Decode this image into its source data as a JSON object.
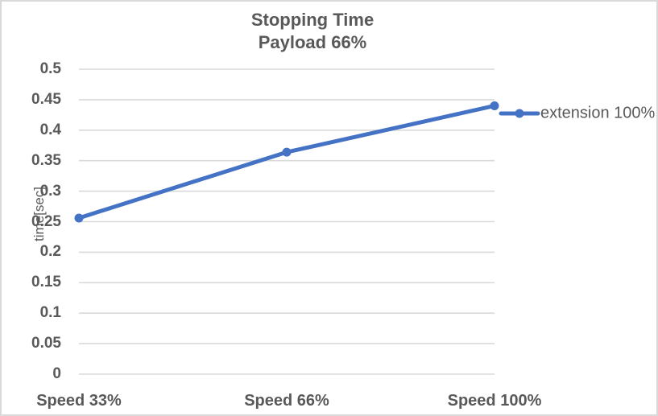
{
  "chart_data": {
    "type": "line",
    "title": "Stopping Time",
    "subtitle": "Payload 66%",
    "ylabel": "time[sec]",
    "xlabel": "",
    "categories": [
      "Speed 33%",
      "Speed 66%",
      "Speed 100%"
    ],
    "series": [
      {
        "name": "extension 100%",
        "values": [
          0.256,
          0.364,
          0.44
        ],
        "color": "#4472C4",
        "marker": "circle"
      }
    ],
    "ylim": [
      0,
      0.5
    ],
    "ytick_step": 0.05,
    "yticks": [
      "0",
      "0.05",
      "0.1",
      "0.15",
      "0.2",
      "0.25",
      "0.3",
      "0.35",
      "0.4",
      "0.45",
      "0.5"
    ],
    "grid": true,
    "legend_position": "right"
  },
  "colors": {
    "accent": "#4472C4",
    "text": "#595959",
    "gridline": "#D9D9D9",
    "border": "#D9D9D9",
    "background": "#FFFFFF"
  }
}
